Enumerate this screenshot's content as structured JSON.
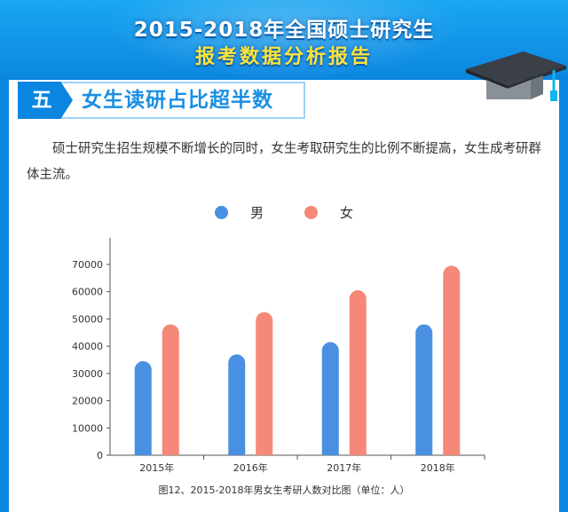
{
  "header": {
    "title_line1": "2015-2018年全国硕士研究生",
    "title_line2": "报考数据分析报告"
  },
  "section": {
    "number": "五",
    "title": "女生读研占比超半数"
  },
  "paragraph": "硕士研究生招生规模不断增长的同时，女生考取研究生的比例不断提高，女生成考研群体主流。",
  "colors": {
    "header_blue": "#0b86e0",
    "male": "#4a90e2",
    "female": "#f58878",
    "title_yellow": "#ffe33a"
  },
  "chart_data": {
    "type": "bar",
    "categories": [
      "2015年",
      "2016年",
      "2017年",
      "2018年"
    ],
    "series": [
      {
        "name": "男",
        "values": [
          34500,
          37000,
          41500,
          48000
        ],
        "color": "#4a90e2"
      },
      {
        "name": "女",
        "values": [
          48000,
          52500,
          60500,
          69500
        ],
        "color": "#f58878"
      }
    ],
    "ylim": [
      0,
      70000
    ],
    "yticks": [
      0,
      10000,
      20000,
      30000,
      40000,
      50000,
      60000,
      70000
    ],
    "legend_position": "top-center",
    "grid": false,
    "caption": "图12、2015-2018年男女生考研人数对比图（单位：人）"
  }
}
